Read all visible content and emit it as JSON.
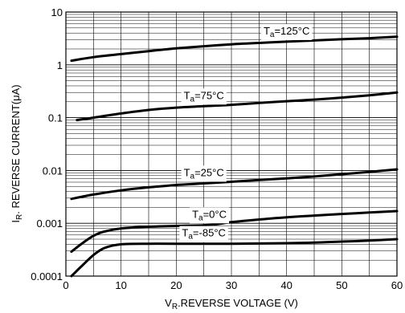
{
  "chart_data": {
    "type": "line",
    "xlabel_main": "V",
    "xlabel_sub": "R",
    "xlabel_rest": ".REVERSE VOLTAGE (V)",
    "ylabel_main": "I",
    "ylabel_sub": "R",
    "ylabel_rest": ". REVERSE CURRENT(",
    "ylabel_mu": "μ",
    "ylabel_end": "A)",
    "xlim": [
      0,
      60
    ],
    "ylim": [
      0.0001,
      10
    ],
    "y_scale": "log",
    "grid": true,
    "x_ticks": [
      0,
      10,
      20,
      30,
      40,
      50,
      60
    ],
    "x_tick_labels": [
      "0",
      "10",
      "20",
      "30",
      "40",
      "50",
      "60"
    ],
    "y_ticks": [
      0.0001,
      0.001,
      0.01,
      0.1,
      1,
      10
    ],
    "y_tick_labels": [
      "0.0001",
      "0.001",
      "0.01",
      "0.1",
      "1",
      "10"
    ],
    "series": [
      {
        "name_prefix": "T",
        "name_sub": "a",
        "name_value": "=125",
        "name_unit": "°C",
        "x": [
          1,
          5,
          10,
          15,
          20,
          25,
          30,
          35,
          40,
          45,
          50,
          55,
          60
        ],
        "y": [
          1.2,
          1.4,
          1.6,
          1.82,
          2.05,
          2.25,
          2.45,
          2.6,
          2.75,
          2.9,
          3.05,
          3.2,
          3.4
        ]
      },
      {
        "name_prefix": "T",
        "name_sub": "a",
        "name_value": "=75",
        "name_unit": "°C",
        "x": [
          2,
          5,
          10,
          15,
          20,
          25,
          30,
          35,
          40,
          45,
          50,
          55,
          60
        ],
        "y": [
          0.09,
          0.1,
          0.12,
          0.14,
          0.155,
          0.165,
          0.175,
          0.19,
          0.205,
          0.22,
          0.24,
          0.265,
          0.3
        ]
      },
      {
        "name_prefix": "T",
        "name_sub": "a",
        "name_value": "=25",
        "name_unit": "°C",
        "x": [
          1,
          5,
          10,
          15,
          20,
          25,
          30,
          35,
          40,
          45,
          50,
          55,
          60
        ],
        "y": [
          0.0029,
          0.0035,
          0.0042,
          0.0048,
          0.0053,
          0.0057,
          0.0061,
          0.0066,
          0.0071,
          0.0077,
          0.0085,
          0.0094,
          0.0105
        ]
      },
      {
        "name_prefix": "T",
        "name_sub": "a",
        "name_value": "=0",
        "name_unit": "°C",
        "x": [
          1,
          3,
          5,
          7,
          10,
          15,
          20,
          26,
          30,
          35,
          40,
          45,
          50,
          55,
          60
        ],
        "y": [
          0.00029,
          0.00042,
          0.00058,
          0.0007,
          0.0008,
          0.00086,
          0.00089,
          0.00093,
          0.00105,
          0.00118,
          0.0013,
          0.0014,
          0.0015,
          0.0016,
          0.0017
        ]
      },
      {
        "name_prefix": "T",
        "name_sub": "a",
        "name_value": "=-85",
        "name_unit": "°C",
        "x": [
          1,
          3,
          5,
          7,
          10,
          15,
          20,
          30,
          40,
          45,
          50,
          55,
          60
        ],
        "y": [
          0.0001,
          0.00016,
          0.00025,
          0.00034,
          0.0004,
          0.00041,
          0.00041,
          0.00041,
          0.00042,
          0.00043,
          0.00045,
          0.00047,
          0.0005
        ]
      }
    ]
  }
}
